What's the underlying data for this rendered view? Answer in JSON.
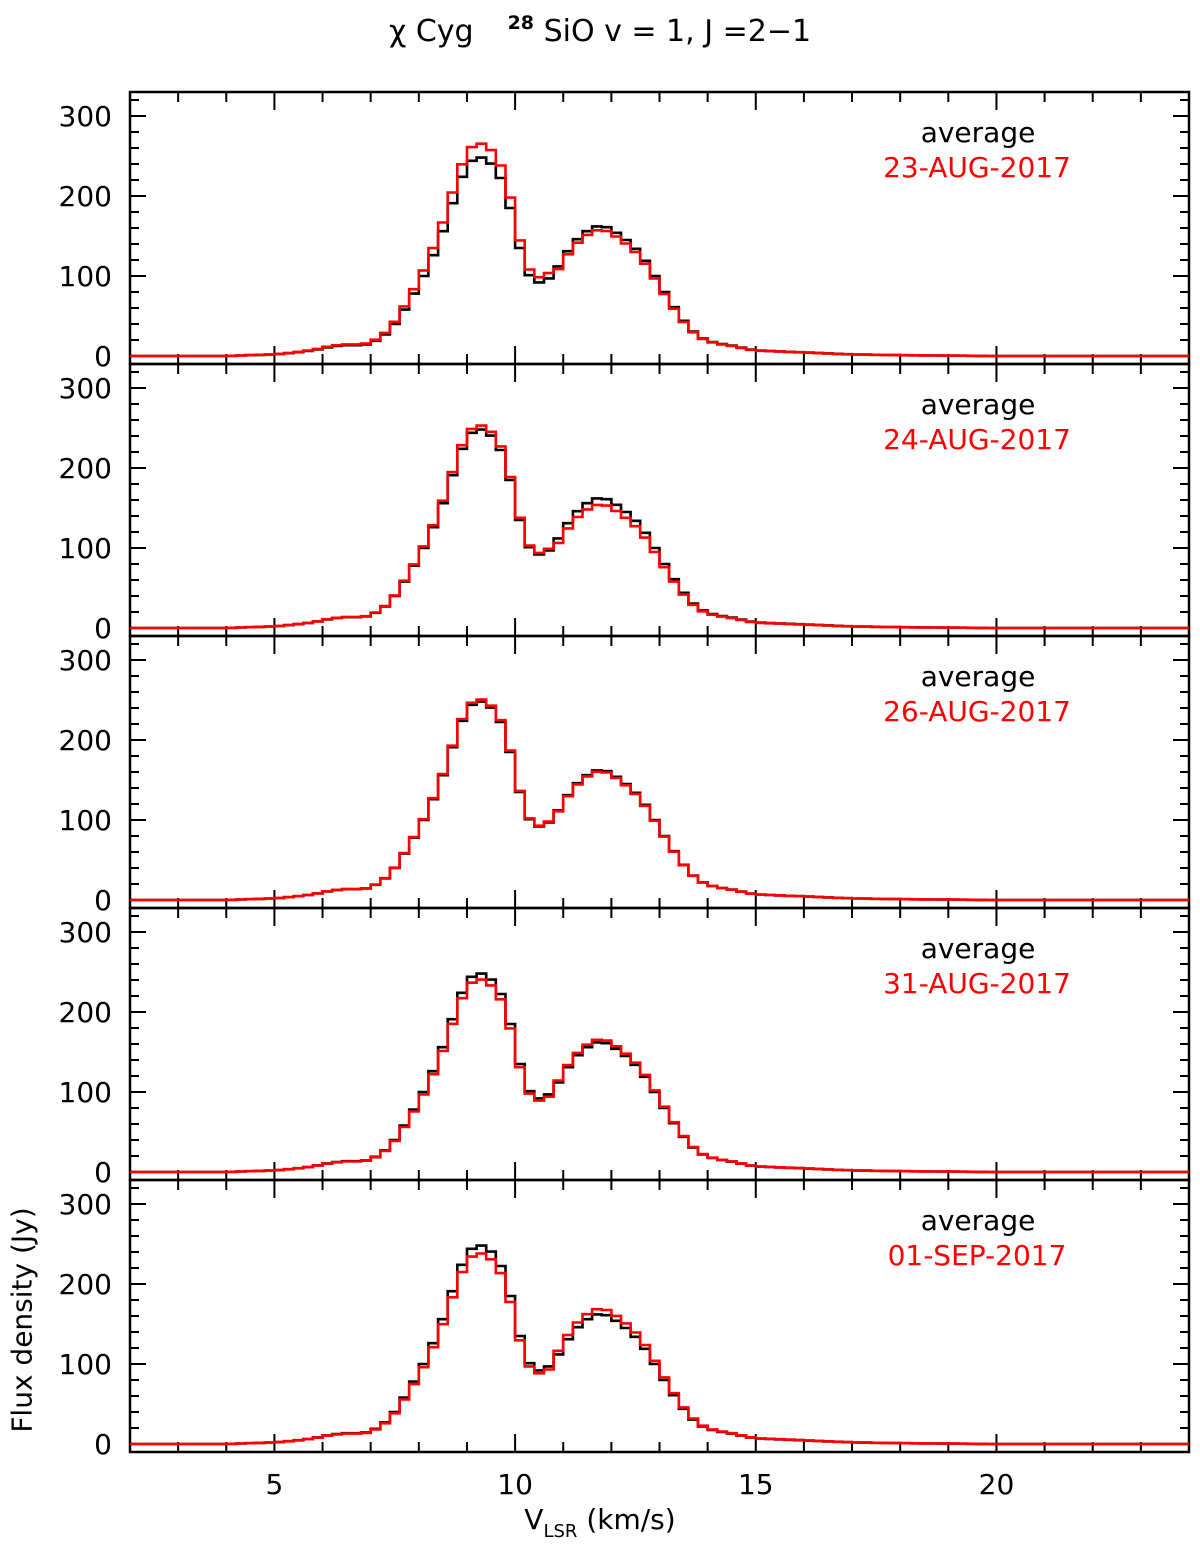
{
  "chart_data": {
    "type": "line",
    "title": {
      "object": "χ Cyg",
      "isotope": "28",
      "line": "SiO v = 1, J =2−1"
    },
    "xlabel": {
      "main": "V",
      "sub": "LSR",
      "unit": "(km/s)"
    },
    "ylabel": "Flux density (Jy)",
    "xlim": [
      2,
      24
    ],
    "ylim": [
      -10,
      330
    ],
    "xticks_major": [
      5,
      10,
      15,
      20
    ],
    "xticks_labels": [
      "5",
      "10",
      "15",
      "20"
    ],
    "yticks_major": [
      0,
      100,
      200,
      300
    ],
    "yticks_labels": [
      "0",
      "100",
      "200",
      "300"
    ],
    "step_kms": 0.2,
    "legend_label": "average",
    "colors": {
      "average": "#000000",
      "date": "#ff0000"
    },
    "average_profile": {
      "name": "average",
      "x_kms": [
        2.0,
        4.0,
        5.0,
        5.4,
        5.8,
        6.2,
        6.6,
        6.8,
        7.0,
        7.2,
        7.4,
        7.6,
        7.8,
        8.0,
        8.2,
        8.4,
        8.6,
        8.8,
        9.0,
        9.2,
        9.4,
        9.6,
        9.8,
        10.0,
        10.2,
        10.4,
        10.6,
        10.8,
        11.0,
        11.2,
        11.4,
        11.6,
        11.8,
        12.0,
        12.2,
        12.4,
        12.6,
        12.8,
        13.0,
        13.2,
        13.4,
        13.6,
        13.8,
        14.0,
        14.2,
        14.4,
        14.6,
        14.8,
        15.0,
        15.4,
        15.8,
        16.2,
        16.6,
        17.0,
        18.0,
        20.0,
        24.0
      ],
      "flux_jy": [
        0,
        0,
        2,
        4,
        7,
        12,
        14,
        13,
        16,
        22,
        32,
        48,
        68,
        88,
        112,
        140,
        172,
        210,
        238,
        250,
        246,
        235,
        210,
        160,
        110,
        92,
        92,
        102,
        122,
        140,
        152,
        160,
        164,
        158,
        150,
        140,
        128,
        110,
        90,
        70,
        52,
        36,
        25,
        19,
        16,
        14,
        12,
        9,
        7,
        6,
        5,
        4,
        3,
        2,
        1,
        0,
        0
      ]
    },
    "panels": [
      {
        "label": "average",
        "date": "23-AUG-2017",
        "date_scale": [
          1.07,
          0.97
        ]
      },
      {
        "label": "average",
        "date": "24-AUG-2017",
        "date_scale": [
          1.02,
          0.95
        ]
      },
      {
        "label": "average",
        "date": "26-AUG-2017",
        "date_scale": [
          1.01,
          0.99
        ]
      },
      {
        "label": "average",
        "date": "31-AUG-2017",
        "date_scale": [
          0.97,
          1.02
        ]
      },
      {
        "label": "average",
        "date": "01-SEP-2017",
        "date_scale": [
          0.96,
          1.04
        ]
      }
    ]
  }
}
